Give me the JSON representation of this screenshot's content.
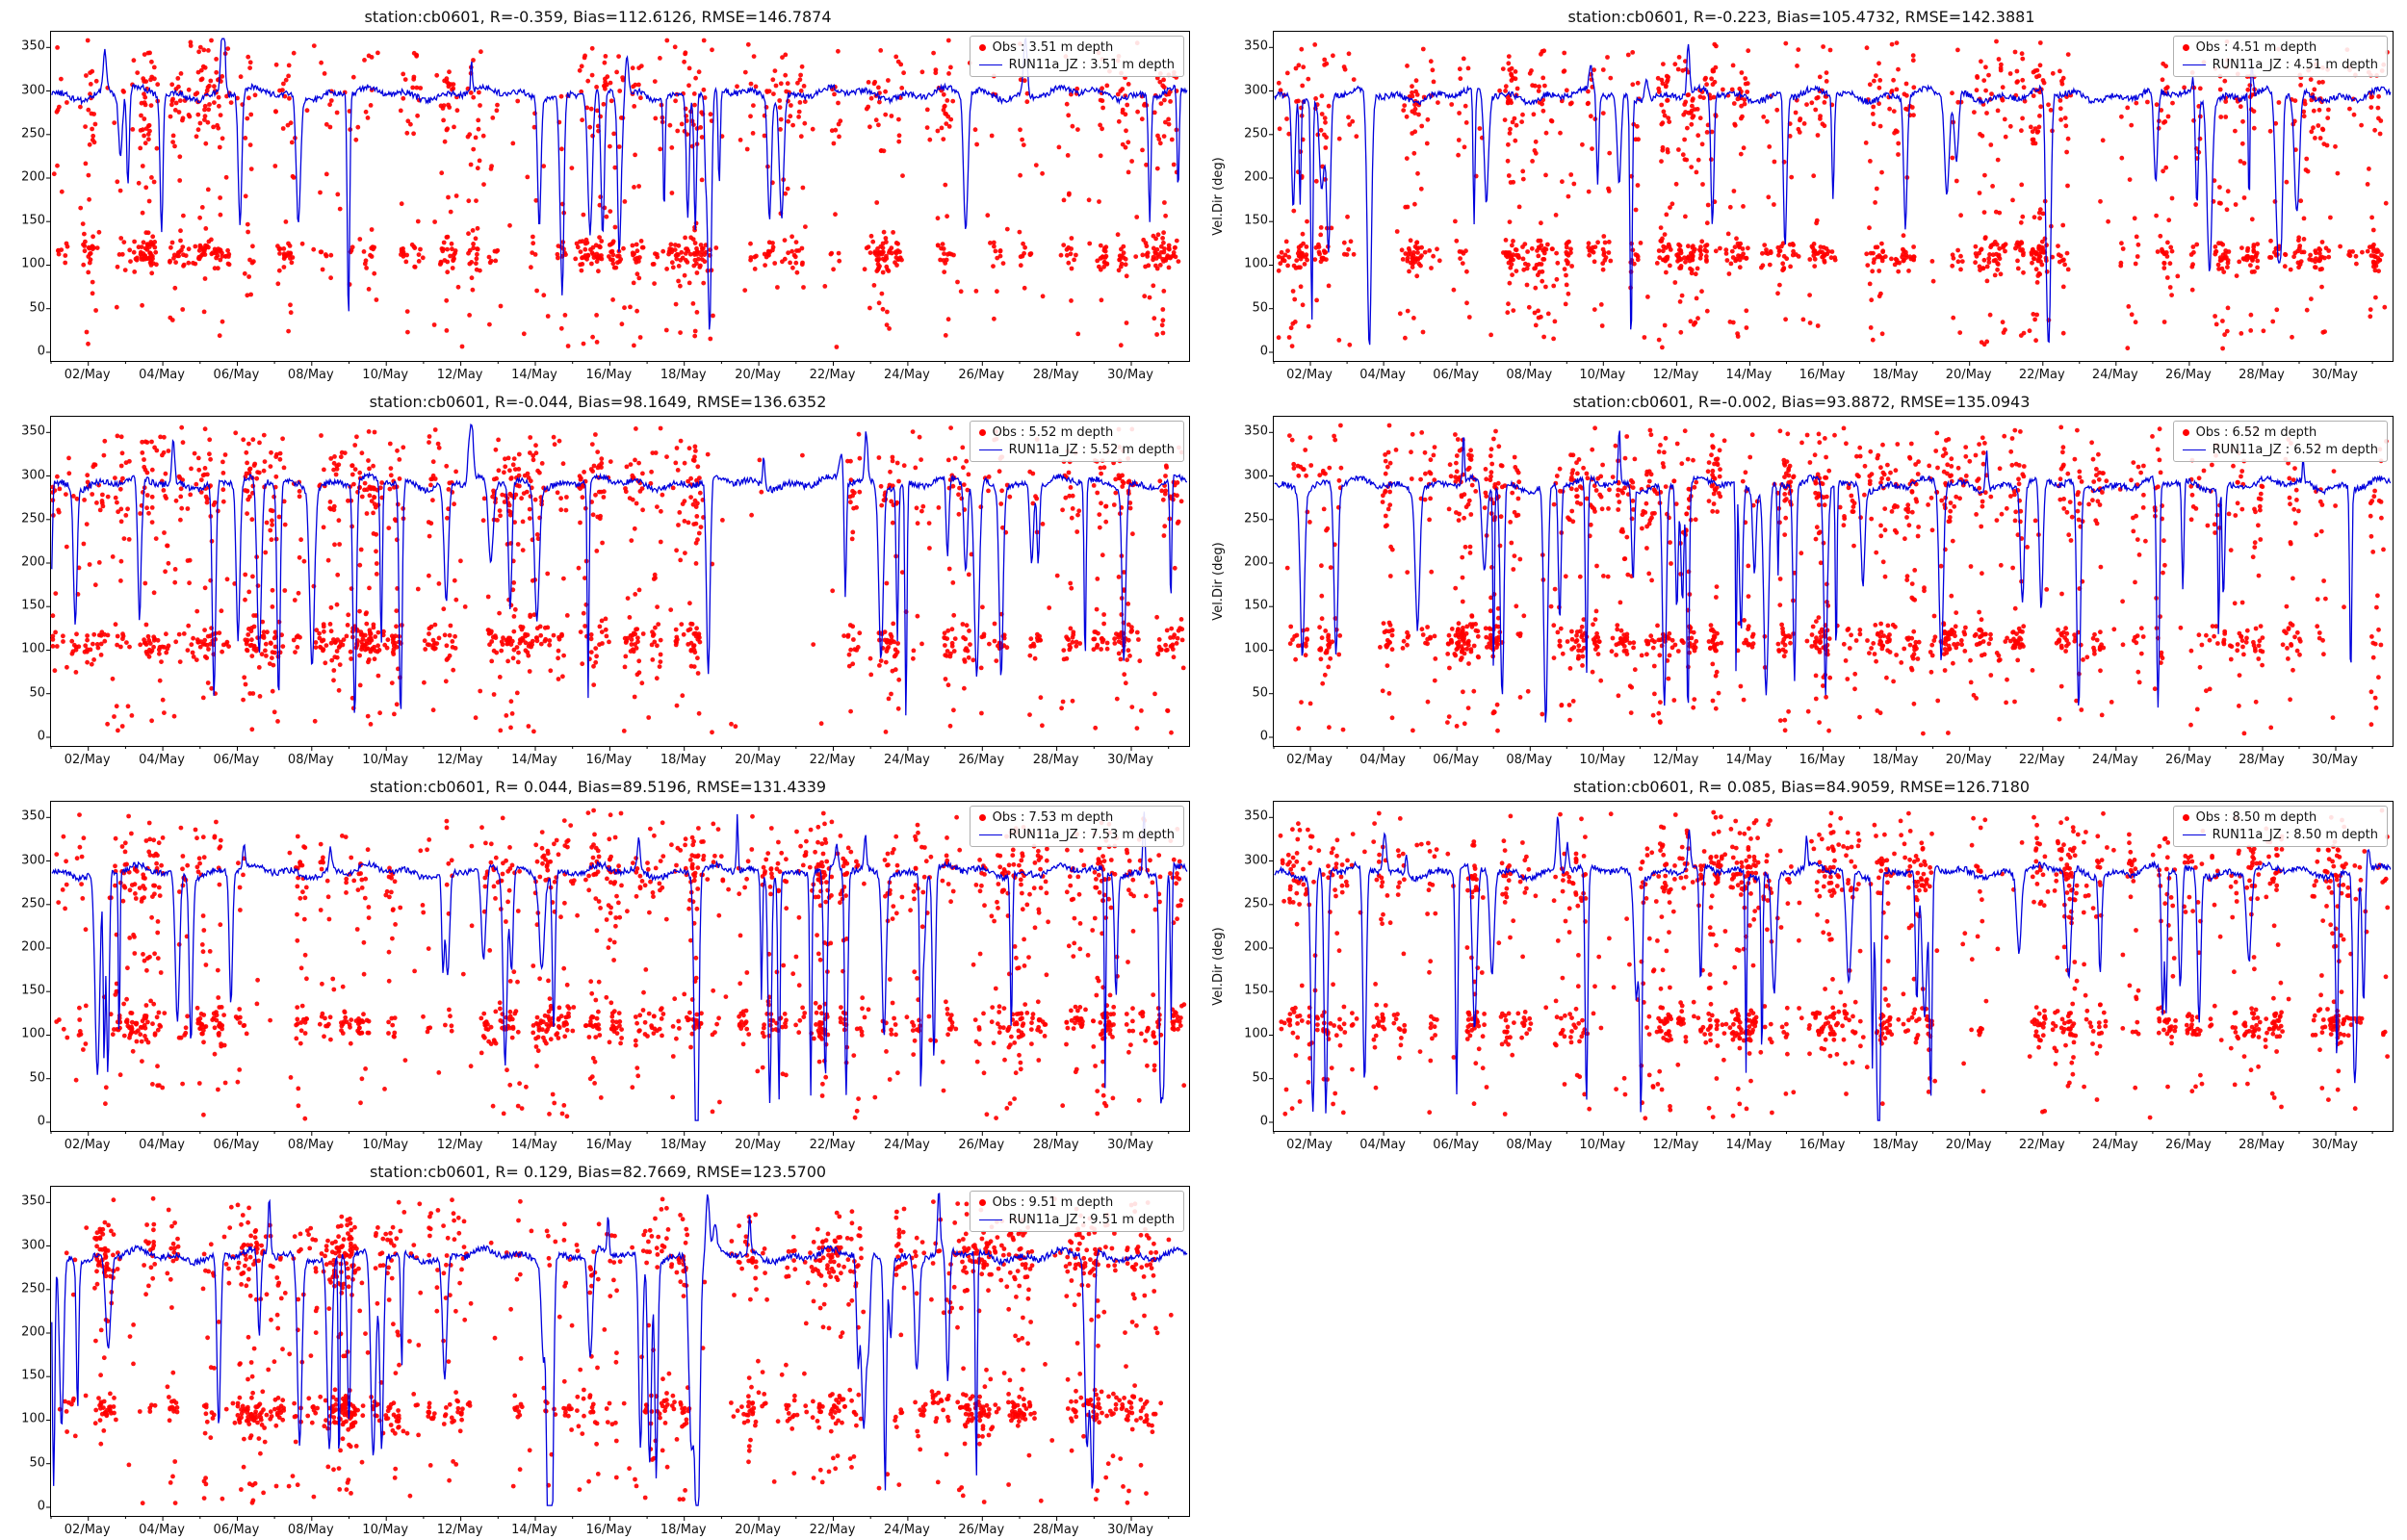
{
  "figure": {
    "obs_color": "#ff0000",
    "model_color": "#0000dd",
    "axis_color": "#000000",
    "ylabel": "Vel.Dir (deg)",
    "ylim": [
      -10,
      368
    ],
    "xlim": [
      1,
      31.55
    ],
    "yticks": [
      0,
      50,
      100,
      150,
      200,
      250,
      300,
      350
    ],
    "xtick_days": [
      2,
      4,
      6,
      8,
      10,
      12,
      14,
      16,
      18,
      20,
      22,
      24,
      26,
      28,
      30
    ],
    "xtick_labels": [
      "02/May",
      "04/May",
      "06/May",
      "08/May",
      "10/May",
      "12/May",
      "14/May",
      "16/May",
      "18/May",
      "20/May",
      "22/May",
      "24/May",
      "26/May",
      "28/May",
      "30/May"
    ],
    "grid": false,
    "legend_position": "upper right"
  },
  "chart_data": [
    {
      "type": "scatter+line",
      "title": "station:cb0601, R=-0.359, Bias=112.6126, RMSE=146.7874",
      "ylabel": "",
      "legend": [
        "Obs : 3.51 m depth",
        "RUN11a_JZ : 3.51 m depth"
      ],
      "seed": 101,
      "series": [
        {
          "name": "Obs : 3.51 m depth",
          "type": "scatter",
          "color": "#ff0000",
          "marker": "dot",
          "pattern": {
            "bursts": 92,
            "burst_min": 8,
            "burst_max": 22,
            "loose": 150,
            "f_mid": 0.45,
            "mid": 112,
            "mid_sd": 9,
            "f_top": 0.28,
            "top": 292,
            "top_sd": 28
          }
        },
        {
          "name": "RUN11a_JZ : 3.51 m depth",
          "type": "line",
          "color": "#0000dd",
          "pattern": {
            "base": 297,
            "dips": 22,
            "dip_min": 60,
            "dip_max": 180,
            "deep_dips": 2,
            "up_spikes": 6
          }
        }
      ]
    },
    {
      "type": "scatter+line",
      "title": "station:cb0601, R=-0.223, Bias=105.4732, RMSE=142.3881",
      "ylabel": "Vel.Dir (deg)",
      "legend": [
        "Obs : 4.51 m depth",
        "RUN11a_JZ : 4.51 m depth"
      ],
      "seed": 102,
      "series": [
        {
          "name": "Obs : 4.51 m depth",
          "type": "scatter",
          "color": "#ff0000",
          "marker": "dot",
          "pattern": {
            "bursts": 92,
            "burst_min": 8,
            "burst_max": 22,
            "loose": 150,
            "f_mid": 0.43,
            "mid": 111,
            "mid_sd": 9,
            "f_top": 0.3,
            "top": 290,
            "top_sd": 28
          }
        },
        {
          "name": "RUN11a_JZ : 4.51 m depth",
          "type": "line",
          "color": "#0000dd",
          "pattern": {
            "base": 295,
            "dips": 24,
            "dip_min": 70,
            "dip_max": 200,
            "deep_dips": 3,
            "up_spikes": 6
          }
        }
      ]
    },
    {
      "type": "scatter+line",
      "title": "station:cb0601, R=-0.044, Bias=98.1649, RMSE=136.6352",
      "ylabel": "",
      "legend": [
        "Obs : 5.52 m depth",
        "RUN11a_JZ : 5.52 m depth"
      ],
      "seed": 103,
      "series": [
        {
          "name": "Obs : 5.52 m depth",
          "type": "scatter",
          "color": "#ff0000",
          "marker": "dot",
          "pattern": {
            "bursts": 94,
            "burst_min": 9,
            "burst_max": 23,
            "loose": 160,
            "f_mid": 0.4,
            "mid": 110,
            "mid_sd": 10,
            "f_top": 0.34,
            "top": 289,
            "top_sd": 26
          }
        },
        {
          "name": "RUN11a_JZ : 5.52 m depth",
          "type": "line",
          "color": "#0000dd",
          "pattern": {
            "base": 292,
            "dips": 24,
            "dip_min": 80,
            "dip_max": 230,
            "deep_dips": 6,
            "up_spikes": 7
          }
        }
      ]
    },
    {
      "type": "scatter+line",
      "title": "station:cb0601, R=-0.002, Bias=93.8872, RMSE=135.0943",
      "ylabel": "Vel.Dir (deg)",
      "legend": [
        "Obs : 6.52 m depth",
        "RUN11a_JZ : 6.52 m depth"
      ],
      "seed": 104,
      "series": [
        {
          "name": "Obs : 6.52 m depth",
          "type": "scatter",
          "color": "#ff0000",
          "marker": "dot",
          "pattern": {
            "bursts": 94,
            "burst_min": 9,
            "burst_max": 23,
            "loose": 160,
            "f_mid": 0.39,
            "mid": 111,
            "mid_sd": 10,
            "f_top": 0.35,
            "top": 288,
            "top_sd": 25
          }
        },
        {
          "name": "RUN11a_JZ : 6.52 m depth",
          "type": "line",
          "color": "#0000dd",
          "pattern": {
            "base": 290,
            "dips": 26,
            "dip_min": 80,
            "dip_max": 240,
            "deep_dips": 7,
            "up_spikes": 7
          }
        }
      ]
    },
    {
      "type": "scatter+line",
      "title": "station:cb0601, R= 0.044, Bias=89.5196, RMSE=131.4339",
      "ylabel": "",
      "legend": [
        "Obs : 7.53 m depth",
        "RUN11a_JZ : 7.53 m depth"
      ],
      "seed": 105,
      "series": [
        {
          "name": "Obs : 7.53 m depth",
          "type": "scatter",
          "color": "#ff0000",
          "marker": "dot",
          "pattern": {
            "bursts": 94,
            "burst_min": 9,
            "burst_max": 23,
            "loose": 160,
            "f_mid": 0.38,
            "mid": 112,
            "mid_sd": 10,
            "f_top": 0.37,
            "top": 287,
            "top_sd": 23
          }
        },
        {
          "name": "RUN11a_JZ : 7.53 m depth",
          "type": "line",
          "color": "#0000dd",
          "pattern": {
            "base": 288,
            "dips": 24,
            "dip_min": 80,
            "dip_max": 240,
            "deep_dips": 8,
            "up_spikes": 7
          }
        }
      ]
    },
    {
      "type": "scatter+line",
      "title": "station:cb0601, R= 0.085, Bias=84.9059, RMSE=126.7180",
      "ylabel": "Vel.Dir (deg)",
      "legend": [
        "Obs : 8.50 m depth",
        "RUN11a_JZ : 8.50 m depth"
      ],
      "seed": 106,
      "series": [
        {
          "name": "Obs : 8.50 m depth",
          "type": "scatter",
          "color": "#ff0000",
          "marker": "dot",
          "pattern": {
            "bursts": 94,
            "burst_min": 9,
            "burst_max": 23,
            "loose": 160,
            "f_mid": 0.37,
            "mid": 111,
            "mid_sd": 10,
            "f_top": 0.38,
            "top": 287,
            "top_sd": 22
          }
        },
        {
          "name": "RUN11a_JZ : 8.50 m depth",
          "type": "line",
          "color": "#0000dd",
          "pattern": {
            "base": 288,
            "dips": 24,
            "dip_min": 80,
            "dip_max": 240,
            "deep_dips": 8,
            "up_spikes": 7
          }
        }
      ]
    },
    {
      "type": "scatter+line",
      "title": "station:cb0601, R= 0.129, Bias=82.7669, RMSE=123.5700",
      "ylabel": "",
      "legend": [
        "Obs : 9.51 m depth",
        "RUN11a_JZ : 9.51 m depth"
      ],
      "seed": 107,
      "series": [
        {
          "name": "Obs : 9.51 m depth",
          "type": "scatter",
          "color": "#ff0000",
          "marker": "dot",
          "pattern": {
            "bursts": 95,
            "burst_min": 9,
            "burst_max": 23,
            "loose": 160,
            "f_mid": 0.37,
            "mid": 110,
            "mid_sd": 10,
            "f_top": 0.39,
            "top": 288,
            "top_sd": 21
          }
        },
        {
          "name": "RUN11a_JZ : 9.51 m depth",
          "type": "line",
          "color": "#0000dd",
          "pattern": {
            "base": 289,
            "dips": 26,
            "dip_min": 80,
            "dip_max": 240,
            "deep_dips": 9,
            "up_spikes": 8
          }
        }
      ]
    }
  ]
}
